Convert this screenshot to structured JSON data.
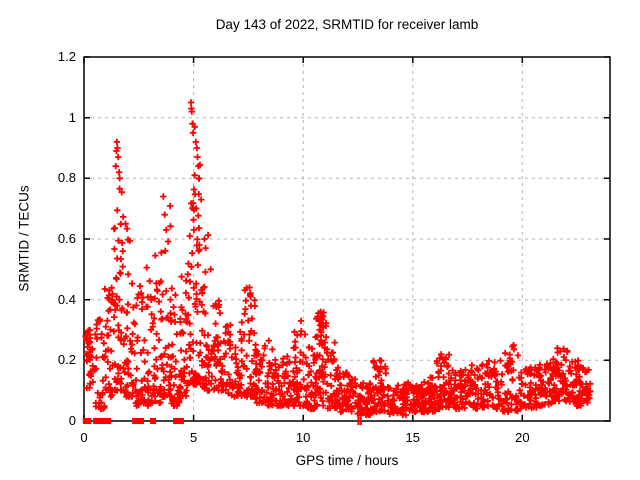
{
  "title": "Day 143 of 2022, SRMTID for receiver lamb",
  "xlabel": "GPS time / hours",
  "ylabel": "SRMTID / TECUs",
  "colors": {
    "marker": "#ff0000",
    "grid": "#b3b3b3",
    "axis": "#000000",
    "background": "#ffffff",
    "text": "#000000"
  },
  "chart_data": {
    "type": "scatter",
    "marker": "plus",
    "marker_color": "#ff0000",
    "title": "Day 143 of 2022, SRMTID for receiver lamb",
    "xlabel": "GPS time / hours",
    "ylabel": "SRMTID / TECUs",
    "xlim": [
      0,
      24
    ],
    "ylim": [
      0,
      1.2
    ],
    "x_ticks": [
      0,
      5,
      10,
      15,
      20
    ],
    "x_tick_labels": [
      "0",
      "5",
      "10",
      "15",
      "20"
    ],
    "y_ticks": [
      0,
      0.2,
      0.4,
      0.6,
      0.8,
      1,
      1.2
    ],
    "y_tick_labels": [
      "0",
      "0.2",
      "0.4",
      "0.6",
      "0.8",
      "1",
      "1.2"
    ],
    "grid": "dashed",
    "legend": "none",
    "seed": 9,
    "clusters": [
      {
        "x0": 0.05,
        "x1": 0.45,
        "n": 26,
        "ymin": 0.1,
        "ymax": 0.31,
        "skew": 1.2
      },
      {
        "x0": 0.08,
        "x1": 0.28,
        "n": 8,
        "ymin": 0.2,
        "ymax": 0.3,
        "skew": 1.0
      },
      {
        "x0": 0.45,
        "x1": 0.95,
        "n": 30,
        "ymin": 0.04,
        "ymax": 0.36,
        "skew": 1.7
      },
      {
        "x0": 0.95,
        "x1": 1.35,
        "n": 34,
        "ymin": 0.08,
        "ymax": 0.47,
        "skew": 1.6
      },
      {
        "x0": 1.35,
        "x1": 1.8,
        "n": 55,
        "ymin": 0.1,
        "ymax": 0.78,
        "skew": 2.0
      },
      {
        "x0": 1.8,
        "x1": 2.25,
        "n": 40,
        "ymin": 0.08,
        "ymax": 0.66,
        "skew": 2.2
      },
      {
        "x0": 2.25,
        "x1": 2.7,
        "n": 34,
        "ymin": 0.05,
        "ymax": 0.45,
        "skew": 1.8
      },
      {
        "x0": 2.7,
        "x1": 3.15,
        "n": 36,
        "ymin": 0.05,
        "ymax": 0.55,
        "skew": 2.0
      },
      {
        "x0": 3.15,
        "x1": 3.55,
        "n": 34,
        "ymin": 0.06,
        "ymax": 0.56,
        "skew": 2.0
      },
      {
        "x0": 3.55,
        "x1": 3.95,
        "n": 40,
        "ymin": 0.08,
        "ymax": 0.74,
        "skew": 2.3
      },
      {
        "x0": 3.95,
        "x1": 4.35,
        "n": 34,
        "ymin": 0.05,
        "ymax": 0.45,
        "skew": 1.8
      },
      {
        "x0": 4.35,
        "x1": 4.75,
        "n": 38,
        "ymin": 0.08,
        "ymax": 0.52,
        "skew": 1.8
      },
      {
        "x0": 4.75,
        "x1": 5.35,
        "n": 72,
        "ymin": 0.12,
        "ymax": 0.88,
        "skew": 2.0
      },
      {
        "x0": 5.35,
        "x1": 5.8,
        "n": 38,
        "ymin": 0.1,
        "ymax": 0.62,
        "skew": 2.0
      },
      {
        "x0": 5.8,
        "x1": 6.5,
        "n": 55,
        "ymin": 0.1,
        "ymax": 0.4,
        "skew": 1.5
      },
      {
        "x0": 6.5,
        "x1": 7.3,
        "n": 55,
        "ymin": 0.08,
        "ymax": 0.33,
        "skew": 1.6
      },
      {
        "x0": 7.3,
        "x1": 7.8,
        "n": 42,
        "ymin": 0.08,
        "ymax": 0.44,
        "skew": 2.2
      },
      {
        "x0": 7.8,
        "x1": 8.3,
        "n": 42,
        "ymin": 0.06,
        "ymax": 0.26,
        "skew": 1.6
      },
      {
        "x0": 8.3,
        "x1": 8.7,
        "n": 34,
        "ymin": 0.05,
        "ymax": 0.27,
        "skew": 1.7
      },
      {
        "x0": 8.7,
        "x1": 9.5,
        "n": 55,
        "ymin": 0.05,
        "ymax": 0.22,
        "skew": 1.5
      },
      {
        "x0": 9.5,
        "x1": 10.15,
        "n": 48,
        "ymin": 0.05,
        "ymax": 0.33,
        "skew": 1.9
      },
      {
        "x0": 10.15,
        "x1": 10.55,
        "n": 34,
        "ymin": 0.04,
        "ymax": 0.25,
        "skew": 1.7
      },
      {
        "x0": 10.55,
        "x1": 11.1,
        "n": 55,
        "ymin": 0.05,
        "ymax": 0.37,
        "skew": 1.4
      },
      {
        "x0": 10.7,
        "x1": 11.05,
        "n": 15,
        "ymin": 0.25,
        "ymax": 0.36,
        "skew": 1.0
      },
      {
        "x0": 11.1,
        "x1": 11.6,
        "n": 42,
        "ymin": 0.04,
        "ymax": 0.26,
        "skew": 2.0
      },
      {
        "x0": 11.6,
        "x1": 12.4,
        "n": 60,
        "ymin": 0.03,
        "ymax": 0.16,
        "skew": 1.5
      },
      {
        "x0": 12.4,
        "x1": 13.2,
        "n": 60,
        "ymin": 0.02,
        "ymax": 0.13,
        "skew": 1.5
      },
      {
        "x0": 13.2,
        "x1": 13.8,
        "n": 48,
        "ymin": 0.03,
        "ymax": 0.2,
        "skew": 2.0
      },
      {
        "x0": 13.8,
        "x1": 14.7,
        "n": 62,
        "ymin": 0.02,
        "ymax": 0.12,
        "skew": 1.4
      },
      {
        "x0": 14.7,
        "x1": 15.5,
        "n": 58,
        "ymin": 0.03,
        "ymax": 0.13,
        "skew": 1.4
      },
      {
        "x0": 15.5,
        "x1": 16.1,
        "n": 50,
        "ymin": 0.03,
        "ymax": 0.15,
        "skew": 1.5
      },
      {
        "x0": 16.1,
        "x1": 16.7,
        "n": 52,
        "ymin": 0.04,
        "ymax": 0.22,
        "skew": 1.8
      },
      {
        "x0": 16.7,
        "x1": 17.5,
        "n": 58,
        "ymin": 0.04,
        "ymax": 0.17,
        "skew": 1.5
      },
      {
        "x0": 17.5,
        "x1": 18.3,
        "n": 55,
        "ymin": 0.04,
        "ymax": 0.19,
        "skew": 1.6
      },
      {
        "x0": 18.3,
        "x1": 19.1,
        "n": 55,
        "ymin": 0.04,
        "ymax": 0.2,
        "skew": 1.6
      },
      {
        "x0": 19.1,
        "x1": 19.9,
        "n": 52,
        "ymin": 0.03,
        "ymax": 0.25,
        "skew": 2.0
      },
      {
        "x0": 19.9,
        "x1": 20.7,
        "n": 55,
        "ymin": 0.04,
        "ymax": 0.18,
        "skew": 1.5
      },
      {
        "x0": 20.7,
        "x1": 21.4,
        "n": 55,
        "ymin": 0.05,
        "ymax": 0.2,
        "skew": 1.4
      },
      {
        "x0": 21.4,
        "x1": 22.1,
        "n": 60,
        "ymin": 0.06,
        "ymax": 0.24,
        "skew": 1.3
      },
      {
        "x0": 22.1,
        "x1": 22.7,
        "n": 55,
        "ymin": 0.05,
        "ymax": 0.2,
        "skew": 1.4
      },
      {
        "x0": 22.7,
        "x1": 23.1,
        "n": 28,
        "ymin": 0.06,
        "ymax": 0.18,
        "skew": 1.3
      }
    ],
    "peak_points": [
      [
        1.45,
        0.84
      ],
      [
        1.48,
        0.89
      ],
      [
        1.5,
        0.92
      ],
      [
        1.53,
        0.9
      ],
      [
        1.56,
        0.87
      ],
      [
        1.6,
        0.82
      ],
      [
        1.63,
        0.8
      ],
      [
        1.9,
        0.65
      ],
      [
        3.62,
        0.74
      ],
      [
        3.68,
        0.68
      ],
      [
        3.75,
        0.63
      ],
      [
        4.88,
        1.05
      ],
      [
        4.9,
        1.03
      ],
      [
        4.92,
        1.02
      ],
      [
        4.95,
        0.98
      ],
      [
        4.98,
        0.95
      ],
      [
        5.05,
        0.97
      ],
      [
        5.1,
        0.92
      ],
      [
        5.15,
        0.9
      ],
      [
        5.18,
        0.87
      ],
      [
        5.22,
        0.84
      ],
      [
        5.25,
        0.8
      ],
      [
        5.5,
        0.6
      ],
      [
        5.55,
        0.57
      ],
      [
        7.55,
        0.44
      ],
      [
        7.6,
        0.41
      ],
      [
        7.62,
        0.38
      ],
      [
        9.9,
        0.33
      ],
      [
        10.8,
        0.36
      ],
      [
        13.5,
        0.2
      ],
      [
        16.3,
        0.22
      ],
      [
        19.6,
        0.25
      ],
      [
        21.6,
        0.24
      ]
    ],
    "zero_squares": [
      0.08,
      0.14,
      0.2,
      0.55,
      0.62,
      0.68,
      0.8,
      0.95,
      1.02,
      1.1,
      2.33,
      2.4,
      2.52,
      2.6,
      3.15,
      4.2,
      4.28,
      4.42
    ],
    "zero_ticks": [
      12.52,
      12.63
    ]
  }
}
